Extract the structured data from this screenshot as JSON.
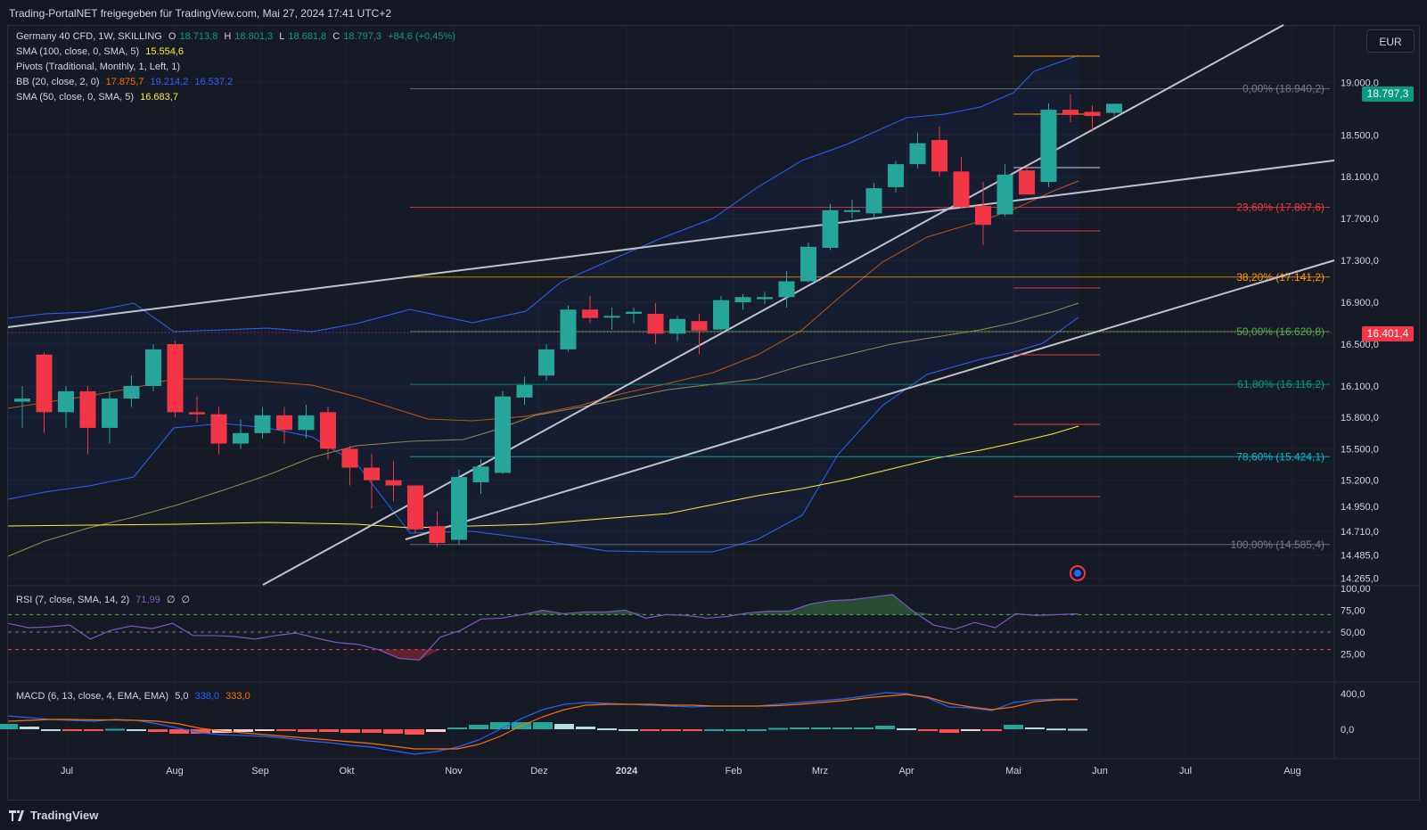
{
  "header": {
    "text": "Trading-PortalNET freigegeben für TradingView.com, Mai 27, 2024 17:41 UTC+2"
  },
  "currency": "EUR",
  "legend": {
    "symbol": "Germany 40 CFD, 1W, SKILLING",
    "o_label": "O",
    "o_value": "18.713,8",
    "h_label": "H",
    "h_value": "18.801,3",
    "l_label": "L",
    "l_value": "18.681,8",
    "c_label": "C",
    "c_value": "18.797,3",
    "change": "+84,6 (+0,45%)",
    "sma100": "SMA (100, close, 0, SMA, 5)",
    "sma100_value": "15.554,6",
    "pivots": "Pivots (Traditional, Monthly, 1, Left, 1)",
    "bb": "BB (20, close, 2, 0)",
    "bb_basis": "17.875,7",
    "bb_upper": "19.214,2",
    "bb_lower": "16.537,2",
    "sma50": "SMA (50, close, 0, SMA, 5)",
    "sma50_value": "16.683,7"
  },
  "rsi": {
    "label": "RSI (7, close, SMA, 14, 2)",
    "value": "71,99",
    "extra1": "∅",
    "extra2": "∅"
  },
  "macd": {
    "label": "MACD (6, 13, close, 4, EMA, EMA)",
    "hist": "5,0",
    "macd": "338,0",
    "signal": "333,0"
  },
  "price_tags": {
    "last": "18.797,3",
    "line": "16.401,4"
  },
  "brand": "TradingView",
  "colors": {
    "up": "#26a69a",
    "down": "#f23645",
    "bb": "#2962ff",
    "bb_basis": "#ff6d00",
    "sma100": "#ffeb3b",
    "sma50": "#8d8c4d",
    "macd": "#2962ff",
    "signal": "#ff6d00",
    "rsi": "#7e57c2"
  },
  "chart_data": [
    {
      "type": "candlestick",
      "title": "Germany 40 CFD, 1W, SKILLING",
      "x_labels": [
        "Jul",
        "Aug",
        "Sep",
        "Okt",
        "Nov",
        "Dez",
        "2024",
        "Feb",
        "Mrz",
        "Apr",
        "Mai",
        "Jun",
        "Jul",
        "Aug"
      ],
      "y_ticks": [
        "19.000,0",
        "18.500,0",
        "18.100,0",
        "17.700,0",
        "17.300,0",
        "16.900,0",
        "16.500,0",
        "16.100,0",
        "15.800,0",
        "15.500,0",
        "15.200,0",
        "14.950,0",
        "14.710,0",
        "14.485,0",
        "14.265,0"
      ],
      "ylim": [
        14200,
        19550
      ],
      "candles": [
        {
          "o": 15950,
          "h": 16100,
          "l": 15700,
          "c": 15980
        },
        {
          "o": 16400,
          "h": 16420,
          "l": 15650,
          "c": 15850
        },
        {
          "o": 15850,
          "h": 16100,
          "l": 15700,
          "c": 16050
        },
        {
          "o": 16050,
          "h": 16100,
          "l": 15450,
          "c": 15700
        },
        {
          "o": 15700,
          "h": 16050,
          "l": 15550,
          "c": 15980
        },
        {
          "o": 15980,
          "h": 16200,
          "l": 15900,
          "c": 16100
        },
        {
          "o": 16100,
          "h": 16500,
          "l": 16050,
          "c": 16450
        },
        {
          "o": 16500,
          "h": 16530,
          "l": 15800,
          "c": 15850
        },
        {
          "o": 15850,
          "h": 16000,
          "l": 15750,
          "c": 15830
        },
        {
          "o": 15830,
          "h": 15900,
          "l": 15450,
          "c": 15550
        },
        {
          "o": 15550,
          "h": 15780,
          "l": 15500,
          "c": 15650
        },
        {
          "o": 15650,
          "h": 15900,
          "l": 15600,
          "c": 15820
        },
        {
          "o": 15820,
          "h": 15900,
          "l": 15550,
          "c": 15680
        },
        {
          "o": 15680,
          "h": 15920,
          "l": 15600,
          "c": 15820
        },
        {
          "o": 15850,
          "h": 15900,
          "l": 15400,
          "c": 15500
        },
        {
          "o": 15500,
          "h": 15530,
          "l": 15150,
          "c": 15320
        },
        {
          "o": 15320,
          "h": 15450,
          "l": 14930,
          "c": 15200
        },
        {
          "o": 15200,
          "h": 15380,
          "l": 15000,
          "c": 15150
        },
        {
          "o": 15150,
          "h": 15150,
          "l": 14690,
          "c": 14730
        },
        {
          "o": 14760,
          "h": 14900,
          "l": 14560,
          "c": 14600
        },
        {
          "o": 14630,
          "h": 15300,
          "l": 14580,
          "c": 15230
        },
        {
          "o": 15180,
          "h": 15400,
          "l": 15070,
          "c": 15330
        },
        {
          "o": 15270,
          "h": 16050,
          "l": 15260,
          "c": 16000
        },
        {
          "o": 15990,
          "h": 16190,
          "l": 15920,
          "c": 16110
        },
        {
          "o": 16200,
          "h": 16500,
          "l": 16150,
          "c": 16450
        },
        {
          "o": 16450,
          "h": 16870,
          "l": 16430,
          "c": 16830
        },
        {
          "o": 16830,
          "h": 16960,
          "l": 16700,
          "c": 16750
        },
        {
          "o": 16760,
          "h": 16850,
          "l": 16640,
          "c": 16770
        },
        {
          "o": 16790,
          "h": 16850,
          "l": 16700,
          "c": 16810
        },
        {
          "o": 16790,
          "h": 16890,
          "l": 16500,
          "c": 16600
        },
        {
          "o": 16600,
          "h": 16770,
          "l": 16530,
          "c": 16740
        },
        {
          "o": 16720,
          "h": 16790,
          "l": 16400,
          "c": 16630
        },
        {
          "o": 16640,
          "h": 16960,
          "l": 16630,
          "c": 16920
        },
        {
          "o": 16900,
          "h": 16980,
          "l": 16830,
          "c": 16950
        },
        {
          "o": 16930,
          "h": 17000,
          "l": 16880,
          "c": 16950
        },
        {
          "o": 16950,
          "h": 17200,
          "l": 16850,
          "c": 17100
        },
        {
          "o": 17100,
          "h": 17470,
          "l": 17090,
          "c": 17430
        },
        {
          "o": 17420,
          "h": 17840,
          "l": 17400,
          "c": 17780
        },
        {
          "o": 17770,
          "h": 17880,
          "l": 17700,
          "c": 17780
        },
        {
          "o": 17750,
          "h": 18040,
          "l": 17700,
          "c": 17990
        },
        {
          "o": 18000,
          "h": 18250,
          "l": 17950,
          "c": 18220
        },
        {
          "o": 18220,
          "h": 18520,
          "l": 18180,
          "c": 18420
        },
        {
          "o": 18450,
          "h": 18580,
          "l": 18100,
          "c": 18150
        },
        {
          "o": 18150,
          "h": 18290,
          "l": 17800,
          "c": 17810
        },
        {
          "o": 17820,
          "h": 18050,
          "l": 17450,
          "c": 17640
        },
        {
          "o": 17740,
          "h": 18220,
          "l": 17720,
          "c": 18120
        },
        {
          "o": 18160,
          "h": 18200,
          "l": 17950,
          "c": 17930
        },
        {
          "o": 18050,
          "h": 18800,
          "l": 18000,
          "c": 18740
        },
        {
          "o": 18740,
          "h": 18890,
          "l": 18620,
          "c": 18690
        },
        {
          "o": 18720,
          "h": 18780,
          "l": 18530,
          "c": 18680
        },
        {
          "o": 18710,
          "h": 18800,
          "l": 18680,
          "c": 18797
        }
      ],
      "fib_levels": [
        {
          "label": "0,00% (18.940,2)",
          "value": 18940.2,
          "color": "#787b86"
        },
        {
          "label": "23,60% (17.807,6)",
          "value": 17807.6,
          "color": "#f23645"
        },
        {
          "label": "38,20% (17.141,2)",
          "value": 17141.2,
          "color": "#ff9800"
        },
        {
          "label": "50,00% (16.620,8)",
          "value": 16620.8,
          "color": "#4caf50"
        },
        {
          "label": "61,80% (16.116,2)",
          "value": 16116.2,
          "color": "#089981"
        },
        {
          "label": "78,60% (15.424,1)",
          "value": 15424.1,
          "color": "#00bcd4"
        },
        {
          "label": "100,00% (14.585,4)",
          "value": 14585.4,
          "color": "#787b86"
        }
      ]
    },
    {
      "type": "line",
      "title": "RSI (7, close, SMA, 14, 2)",
      "y_ticks": [
        "100,00",
        "75,00",
        "50,00",
        "25,00"
      ],
      "ylim": [
        0,
        100
      ],
      "values": [
        60,
        55,
        56,
        58,
        42,
        52,
        57,
        54,
        60,
        46,
        46,
        45,
        42,
        46,
        49,
        43,
        38,
        36,
        30,
        20,
        18,
        44,
        52,
        65,
        66,
        70,
        75,
        71,
        73,
        73,
        75,
        66,
        70,
        69,
        66,
        68,
        72,
        74,
        74,
        82,
        86,
        87,
        90,
        93,
        74,
        58,
        53,
        61,
        55,
        71,
        69,
        70,
        71
      ]
    },
    {
      "type": "line",
      "title": "MACD (6, 13, close, 4, EMA, EMA)",
      "y_ticks": [
        "400,0",
        "0,0"
      ],
      "ylim": [
        -300,
        500
      ],
      "series": [
        {
          "name": "MACD",
          "values": [
            150,
            130,
            110,
            100,
            90,
            110,
            100,
            60,
            10,
            -40,
            -60,
            -70,
            -80,
            -100,
            -130,
            -150,
            -180,
            -200,
            -240,
            -280,
            -250,
            -200,
            -120,
            0,
            120,
            220,
            280,
            300,
            290,
            280,
            270,
            260,
            250,
            260,
            260,
            260,
            280,
            300,
            320,
            340,
            370,
            410,
            400,
            350,
            250,
            240,
            210,
            300,
            330,
            338,
            338
          ]
        },
        {
          "name": "Signal",
          "values": [
            90,
            100,
            110,
            110,
            105,
            105,
            100,
            90,
            60,
            10,
            -20,
            -40,
            -60,
            -80,
            -100,
            -120,
            -140,
            -160,
            -190,
            -220,
            -220,
            -220,
            -170,
            -80,
            40,
            140,
            220,
            270,
            280,
            280,
            280,
            270,
            270,
            260,
            260,
            260,
            265,
            280,
            300,
            320,
            350,
            370,
            390,
            360,
            290,
            250,
            220,
            250,
            310,
            330,
            333
          ]
        }
      ]
    }
  ]
}
